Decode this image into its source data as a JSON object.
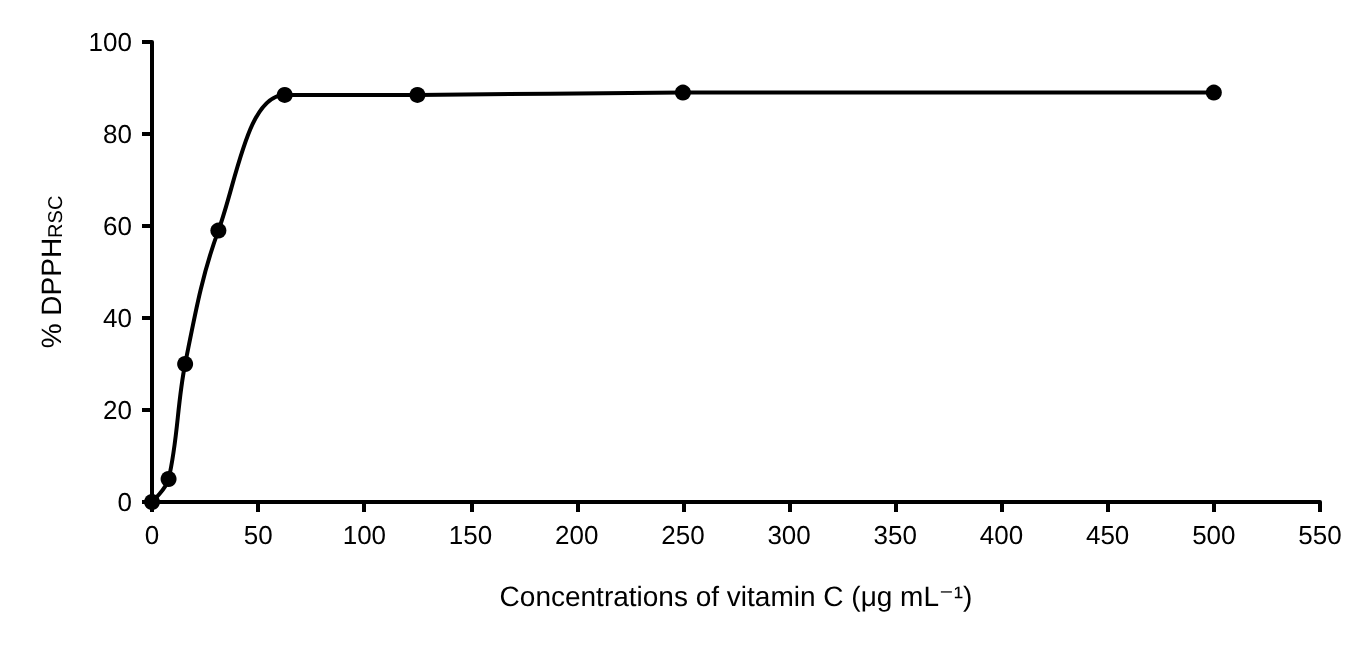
{
  "chart_data": {
    "type": "line",
    "xlabel": "Concentrations of vitamin C (μg mL⁻¹)",
    "ylabel": "% DPPH$_{RSC}$",
    "x": [
      0,
      7.8,
      15.6,
      31.25,
      62.5,
      125,
      250,
      500
    ],
    "series": [
      {
        "color": "#000000",
        "values": [
          0,
          5,
          30,
          59,
          88.5,
          88.5,
          89,
          89
        ]
      }
    ],
    "xlim": [
      0,
      550
    ],
    "xticks": [
      0,
      50,
      100,
      150,
      200,
      250,
      300,
      350,
      400,
      450,
      500,
      550
    ],
    "ylim": [
      0,
      100
    ],
    "yticks": [
      0,
      20,
      40,
      60,
      80,
      100
    ],
    "marker": "circle",
    "line_style": "solid"
  }
}
